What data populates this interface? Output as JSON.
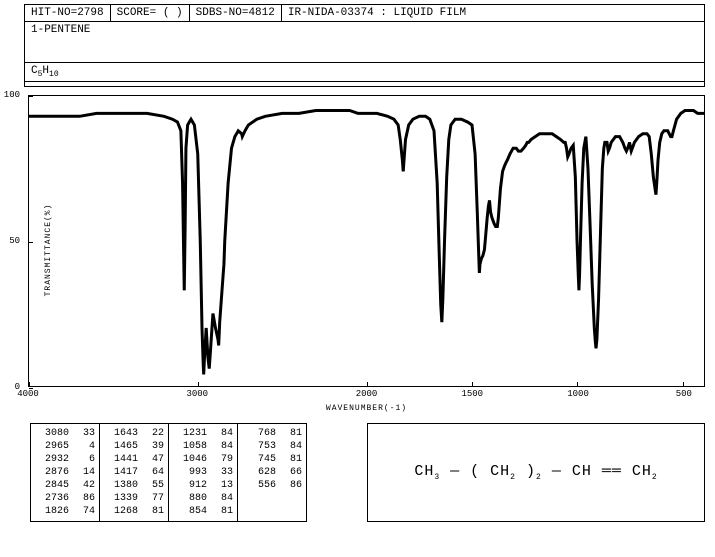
{
  "header": {
    "hit_no": "HIT-NO=2798",
    "score": "SCORE=   (   )",
    "sdbs_no": "SDBS-NO=4812",
    "method": "IR-NIDA-03374 : LIQUID FILM"
  },
  "compound": {
    "name": "1-PENTENE",
    "formula_parts": [
      "C",
      "5",
      "H",
      "10"
    ]
  },
  "chart": {
    "type": "line",
    "ylabel": "TRANSMITTANCE(%)",
    "xlabel": "WAVENUMBER(-1)",
    "ylim": [
      0,
      100
    ],
    "yticks": [
      0,
      50,
      100
    ],
    "xlim": [
      4000,
      400
    ],
    "xticks": [
      4000,
      3000,
      2000,
      1500,
      1000,
      500
    ],
    "line_color": "#000000",
    "background_color": "#ffffff",
    "line_width": 1,
    "data": [
      [
        4000,
        93
      ],
      [
        3900,
        93
      ],
      [
        3800,
        93
      ],
      [
        3700,
        93
      ],
      [
        3600,
        94
      ],
      [
        3500,
        94
      ],
      [
        3400,
        94
      ],
      [
        3300,
        94
      ],
      [
        3200,
        93
      ],
      [
        3150,
        92
      ],
      [
        3120,
        91
      ],
      [
        3100,
        88
      ],
      [
        3090,
        70
      ],
      [
        3080,
        33
      ],
      [
        3075,
        55
      ],
      [
        3070,
        82
      ],
      [
        3060,
        90
      ],
      [
        3040,
        92
      ],
      [
        3020,
        90
      ],
      [
        3000,
        80
      ],
      [
        2985,
        50
      ],
      [
        2975,
        20
      ],
      [
        2968,
        8
      ],
      [
        2965,
        4
      ],
      [
        2960,
        10
      ],
      [
        2950,
        20
      ],
      [
        2940,
        10
      ],
      [
        2932,
        6
      ],
      [
        2925,
        12
      ],
      [
        2910,
        25
      ],
      [
        2895,
        20
      ],
      [
        2880,
        16
      ],
      [
        2876,
        14
      ],
      [
        2870,
        22
      ],
      [
        2860,
        30
      ],
      [
        2850,
        38
      ],
      [
        2845,
        42
      ],
      [
        2840,
        50
      ],
      [
        2820,
        70
      ],
      [
        2800,
        82
      ],
      [
        2780,
        86
      ],
      [
        2760,
        88
      ],
      [
        2740,
        87
      ],
      [
        2736,
        86
      ],
      [
        2720,
        88
      ],
      [
        2700,
        90
      ],
      [
        2650,
        92
      ],
      [
        2600,
        93
      ],
      [
        2500,
        94
      ],
      [
        2400,
        94
      ],
      [
        2300,
        95
      ],
      [
        2200,
        95
      ],
      [
        2100,
        95
      ],
      [
        2050,
        94
      ],
      [
        2000,
        94
      ],
      [
        1950,
        94
      ],
      [
        1900,
        93
      ],
      [
        1870,
        92
      ],
      [
        1850,
        90
      ],
      [
        1840,
        85
      ],
      [
        1830,
        78
      ],
      [
        1826,
        74
      ],
      [
        1822,
        78
      ],
      [
        1815,
        85
      ],
      [
        1800,
        90
      ],
      [
        1780,
        92
      ],
      [
        1750,
        93
      ],
      [
        1720,
        93
      ],
      [
        1700,
        92
      ],
      [
        1680,
        88
      ],
      [
        1665,
        70
      ],
      [
        1655,
        45
      ],
      [
        1648,
        28
      ],
      [
        1643,
        22
      ],
      [
        1638,
        30
      ],
      [
        1630,
        50
      ],
      [
        1620,
        72
      ],
      [
        1610,
        85
      ],
      [
        1600,
        90
      ],
      [
        1580,
        92
      ],
      [
        1550,
        92
      ],
      [
        1520,
        91
      ],
      [
        1500,
        90
      ],
      [
        1485,
        80
      ],
      [
        1475,
        60
      ],
      [
        1468,
        45
      ],
      [
        1465,
        39
      ],
      [
        1462,
        42
      ],
      [
        1455,
        44
      ],
      [
        1448,
        45
      ],
      [
        1441,
        47
      ],
      [
        1435,
        52
      ],
      [
        1428,
        58
      ],
      [
        1422,
        62
      ],
      [
        1417,
        64
      ],
      [
        1412,
        60
      ],
      [
        1405,
        58
      ],
      [
        1395,
        56
      ],
      [
        1388,
        55
      ],
      [
        1380,
        55
      ],
      [
        1375,
        58
      ],
      [
        1365,
        68
      ],
      [
        1355,
        74
      ],
      [
        1345,
        76
      ],
      [
        1339,
        77
      ],
      [
        1332,
        78
      ],
      [
        1320,
        80
      ],
      [
        1305,
        82
      ],
      [
        1290,
        82
      ],
      [
        1280,
        81
      ],
      [
        1268,
        81
      ],
      [
        1255,
        82
      ],
      [
        1245,
        83
      ],
      [
        1238,
        84
      ],
      [
        1231,
        84
      ],
      [
        1220,
        85
      ],
      [
        1200,
        86
      ],
      [
        1180,
        87
      ],
      [
        1160,
        87
      ],
      [
        1140,
        87
      ],
      [
        1120,
        87
      ],
      [
        1100,
        86
      ],
      [
        1080,
        85
      ],
      [
        1065,
        84
      ],
      [
        1058,
        84
      ],
      [
        1052,
        82
      ],
      [
        1046,
        79
      ],
      [
        1040,
        80
      ],
      [
        1030,
        82
      ],
      [
        1020,
        83
      ],
      [
        1010,
        72
      ],
      [
        1002,
        50
      ],
      [
        996,
        38
      ],
      [
        993,
        33
      ],
      [
        990,
        38
      ],
      [
        985,
        52
      ],
      [
        978,
        70
      ],
      [
        970,
        82
      ],
      [
        960,
        86
      ],
      [
        950,
        75
      ],
      [
        940,
        55
      ],
      [
        930,
        35
      ],
      [
        920,
        20
      ],
      [
        915,
        15
      ],
      [
        912,
        13
      ],
      [
        908,
        16
      ],
      [
        900,
        30
      ],
      [
        890,
        55
      ],
      [
        882,
        75
      ],
      [
        875,
        82
      ],
      [
        870,
        84
      ],
      [
        864,
        84
      ],
      [
        860,
        84
      ],
      [
        854,
        81
      ],
      [
        848,
        82
      ],
      [
        840,
        84
      ],
      [
        820,
        86
      ],
      [
        800,
        86
      ],
      [
        785,
        84
      ],
      [
        775,
        82
      ],
      [
        768,
        81
      ],
      [
        762,
        82
      ],
      [
        757,
        83
      ],
      [
        753,
        84
      ],
      [
        748,
        82
      ],
      [
        745,
        81
      ],
      [
        740,
        82
      ],
      [
        730,
        84
      ],
      [
        710,
        86
      ],
      [
        690,
        87
      ],
      [
        670,
        87
      ],
      [
        660,
        86
      ],
      [
        650,
        80
      ],
      [
        640,
        72
      ],
      [
        632,
        68
      ],
      [
        628,
        66
      ],
      [
        624,
        70
      ],
      [
        618,
        78
      ],
      [
        610,
        84
      ],
      [
        600,
        87
      ],
      [
        590,
        88
      ],
      [
        580,
        88
      ],
      [
        572,
        88
      ],
      [
        565,
        87
      ],
      [
        558,
        86
      ],
      [
        556,
        86
      ],
      [
        552,
        86
      ],
      [
        545,
        88
      ],
      [
        530,
        92
      ],
      [
        510,
        94
      ],
      [
        490,
        95
      ],
      [
        470,
        95
      ],
      [
        450,
        95
      ],
      [
        430,
        94
      ],
      [
        410,
        94
      ],
      [
        400,
        94
      ]
    ]
  },
  "peak_table": {
    "columns": [
      [
        [
          3080,
          33
        ],
        [
          2965,
          4
        ],
        [
          2932,
          6
        ],
        [
          2876,
          14
        ],
        [
          2845,
          42
        ],
        [
          2736,
          86
        ],
        [
          1826,
          74
        ]
      ],
      [
        [
          1643,
          22
        ],
        [
          1465,
          39
        ],
        [
          1441,
          47
        ],
        [
          1417,
          64
        ],
        [
          1380,
          55
        ],
        [
          1339,
          77
        ],
        [
          1268,
          81
        ]
      ],
      [
        [
          1231,
          84
        ],
        [
          1058,
          84
        ],
        [
          1046,
          79
        ],
        [
          993,
          33
        ],
        [
          912,
          13
        ],
        [
          880,
          84
        ],
        [
          854,
          81
        ]
      ],
      [
        [
          768,
          81
        ],
        [
          753,
          84
        ],
        [
          745,
          81
        ],
        [
          628,
          66
        ],
        [
          556,
          86
        ]
      ]
    ]
  },
  "structure": {
    "text": "CH₃ —— ( CH₂ )₂ —— CH —— CH₂"
  }
}
